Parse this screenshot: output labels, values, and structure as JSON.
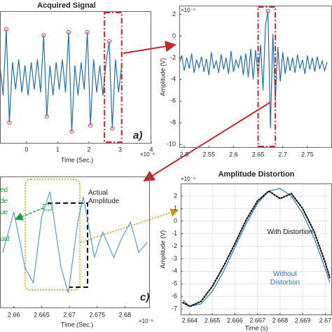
{
  "chart_data": [
    {
      "type": "line",
      "title": "Acquired Signal",
      "xlabel": "Time (Sec.)",
      "x_multiplier": "×10⁻⁶",
      "panel_label": "a)",
      "xlim": [
        -0.85,
        4
      ],
      "xticks": [
        0,
        1,
        2,
        3,
        4
      ],
      "ylim": [
        -1.1,
        1.1
      ],
      "highlight": [
        2.5,
        3.05
      ],
      "series": [
        {
          "color": "#1f6fb5",
          "x": [
            -0.85,
            -0.75,
            -0.65,
            -0.55,
            -0.45,
            -0.35,
            -0.25,
            -0.15,
            -0.05,
            0.05,
            0.15,
            0.25,
            0.35,
            0.45,
            0.55,
            0.65,
            0.75,
            0.85,
            0.95,
            1.05,
            1.15,
            1.25,
            1.35,
            1.45,
            1.55,
            1.65,
            1.75,
            1.85,
            1.95,
            2.05,
            2.15,
            2.25,
            2.35,
            2.45,
            2.55,
            2.65,
            2.75,
            2.85,
            2.95,
            3.05
          ],
          "values": [
            0.2,
            -0.3,
            0.8,
            -0.75,
            0.25,
            -0.2,
            0.3,
            -0.25,
            0.2,
            -0.3,
            0.25,
            -0.2,
            0.3,
            -0.25,
            0.7,
            -0.65,
            0.2,
            -0.3,
            0.25,
            -0.2,
            0.3,
            -0.25,
            0.75,
            -0.9,
            0.2,
            -0.3,
            0.25,
            -0.2,
            0.75,
            -0.8,
            0.3,
            -0.25,
            0.2,
            -0.3,
            0.25,
            0.6,
            -0.85,
            0.3,
            -0.25,
            0.2
          ]
        },
        {
          "color": "#e0454a",
          "marker": "circle",
          "x": [
            -0.65,
            0.55,
            1.35,
            1.95,
            2.65
          ],
          "values": [
            0.8,
            0.7,
            0.75,
            0.75,
            0.6
          ]
        },
        {
          "color": "#e0454a",
          "marker": "circle",
          "x": [
            -0.55,
            0.65,
            1.45,
            2.05,
            2.75
          ],
          "values": [
            -0.75,
            -0.65,
            -0.9,
            -0.8,
            -0.85
          ]
        }
      ]
    },
    {
      "type": "line",
      "ylabel": "Amplitude (V)",
      "y_multiplier": "×10⁻⁴",
      "xlim": [
        2.49,
        2.8
      ],
      "xticks": [
        2.5,
        2.55,
        2.6,
        2.65,
        2.7,
        2.75
      ],
      "ylim": [
        -10.3,
        2.8
      ],
      "yticks": [
        2,
        0,
        -2,
        -4,
        -6,
        -8,
        -10
      ],
      "highlight": [
        2.65,
        2.685
      ],
      "series": [
        {
          "color": "#1f6fb5",
          "x": [
            2.49,
            2.495,
            2.5,
            2.505,
            2.51,
            2.515,
            2.52,
            2.525,
            2.53,
            2.535,
            2.54,
            2.545,
            2.55,
            2.555,
            2.56,
            2.565,
            2.57,
            2.575,
            2.58,
            2.585,
            2.59,
            2.595,
            2.6,
            2.605,
            2.61,
            2.615,
            2.62,
            2.625,
            2.63,
            2.635,
            2.64,
            2.645,
            2.65,
            2.655,
            2.66,
            2.665,
            2.67,
            2.675,
            2.68,
            2.685,
            2.69,
            2.695,
            2.7,
            2.705,
            2.71,
            2.715,
            2.72,
            2.725,
            2.73,
            2.735,
            2.74,
            2.745,
            2.75,
            2.755,
            2.76,
            2.765,
            2.77,
            2.775,
            2.78,
            2.785,
            2.79
          ],
          "values": [
            -2.5,
            -1.8,
            -3.2,
            -2.0,
            -3.0,
            -1.6,
            -3.4,
            -2.2,
            -2.9,
            -1.9,
            -3.3,
            -2.1,
            -3.6,
            -1.5,
            -3.0,
            -2.3,
            -3.4,
            -1.7,
            -3.1,
            -2.0,
            -3.5,
            -1.4,
            -3.3,
            -2.2,
            -2.9,
            -1.8,
            -3.6,
            -1.6,
            -3.8,
            -1.2,
            -4.0,
            -1.3,
            -3.7,
            -0.8,
            -5.0,
            1.0,
            2.3,
            -8.5,
            0.2,
            -6.0,
            -1.0,
            -4.2,
            -1.5,
            -3.5,
            -1.9,
            -3.2,
            -2.0,
            -3.4,
            -1.7,
            -3.0,
            -2.2,
            -3.5,
            -1.8,
            -3.1,
            -2.0,
            -3.3,
            -1.9,
            -3.0,
            -2.3,
            -3.2,
            -2.4
          ]
        },
        {
          "color": "#e0454a",
          "marker": "circle",
          "x": [
            2.67
          ],
          "values": [
            2.3
          ]
        }
      ]
    },
    {
      "type": "line",
      "xlabel": "Time (Sec.)",
      "x_multiplier": "×10⁻⁶",
      "panel_label": "c)",
      "xlim": [
        2.6575,
        2.6845
      ],
      "xticks": [
        2.66,
        2.665,
        2.67,
        2.675,
        2.68
      ],
      "ylim": [
        -1.3,
        1.3
      ],
      "annotations": [
        "ed",
        "de",
        "ue",
        "ual",
        "Actual Amplitude"
      ],
      "series": [
        {
          "color": "#5b9bd5",
          "x": [
            2.658,
            2.66,
            2.662,
            2.6635,
            2.665,
            2.6665,
            2.6685,
            2.6698,
            2.6715,
            2.6725,
            2.6745,
            2.676,
            2.678,
            2.6795,
            2.681,
            2.6825,
            2.684
          ],
          "values": [
            -0.2,
            0.6,
            -0.5,
            -0.8,
            0.5,
            1.0,
            -0.5,
            -1.0,
            0.4,
            0.9,
            -0.3,
            0.2,
            -0.3,
            0.1,
            0.4,
            -0.2,
            0.0
          ]
        }
      ]
    },
    {
      "type": "line",
      "title": "Amplitude Distortion",
      "xlabel": "Time (s)",
      "ylabel": "Amplitude (V)",
      "y_multiplier": "×10⁻⁴",
      "grid": true,
      "xlim": [
        2.6636,
        2.6703
      ],
      "xticks": [
        2.664,
        2.665,
        2.666,
        2.667,
        2.668,
        2.669,
        2.67
      ],
      "ylim": [
        -7.5,
        3
      ],
      "yticks": [
        2,
        1,
        0,
        -1,
        -2,
        -3,
        -4,
        -5,
        -6,
        -7
      ],
      "series": [
        {
          "name": "Without Distortion",
          "color": "#2e75b6",
          "x": [
            2.6637,
            2.664,
            2.6645,
            2.665,
            2.6655,
            2.666,
            2.6665,
            2.667,
            2.6675,
            2.668,
            2.6685,
            2.669,
            2.6695,
            2.67,
            2.6702
          ],
          "values": [
            -6.3,
            -6.8,
            -6.6,
            -5.6,
            -4.0,
            -2.1,
            -0.2,
            1.4,
            2.4,
            2.6,
            2.0,
            0.6,
            -1.3,
            -3.8,
            -4.9
          ]
        },
        {
          "name": "With Distortion",
          "color": "#111111",
          "style": "dotted",
          "x": [
            2.6637,
            2.664,
            2.6645,
            2.665,
            2.6655,
            2.666,
            2.6665,
            2.667,
            2.6675,
            2.668,
            2.6685,
            2.669,
            2.6695,
            2.67,
            2.6702
          ],
          "values": [
            -6.5,
            -6.8,
            -6.4,
            -5.2,
            -3.6,
            -1.8,
            0.1,
            1.6,
            2.4,
            1.8,
            2.2,
            1.0,
            -0.8,
            -3.3,
            -4.5
          ]
        }
      ]
    }
  ]
}
